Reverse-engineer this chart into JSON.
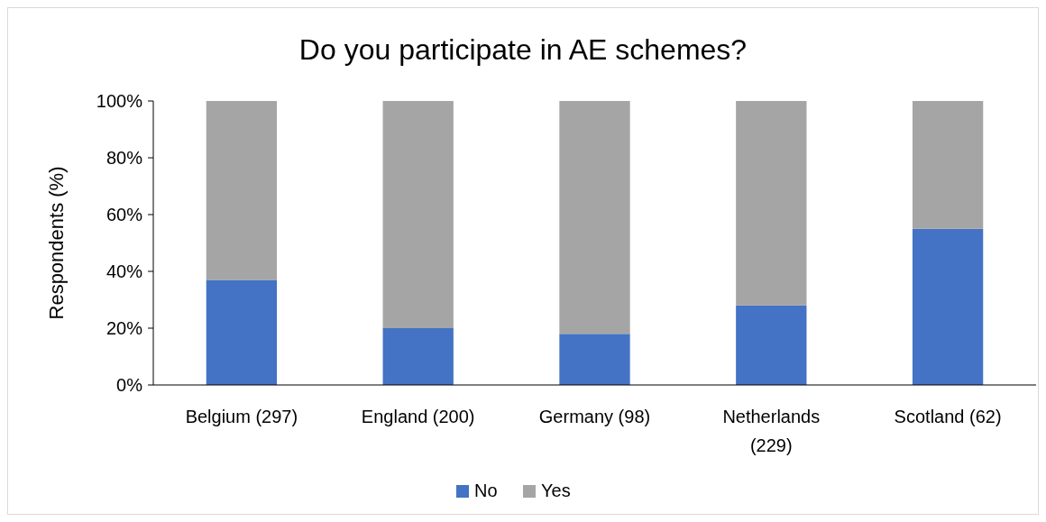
{
  "chart_data": {
    "type": "bar",
    "title": "Do you participate in AE schemes?",
    "ylabel": "Respondents (%)",
    "categories": [
      "Belgium (297)",
      "England (200)",
      "Germany (98)",
      "Netherlands (229)",
      "Scotland (62)"
    ],
    "series": [
      {
        "name": "No",
        "color": "#4472c4",
        "values": [
          37,
          20,
          18,
          28,
          55
        ]
      },
      {
        "name": "Yes",
        "color": "#a5a5a5",
        "values": [
          63,
          80,
          82,
          72,
          45
        ]
      }
    ],
    "stacked": true,
    "ylim": [
      0,
      100
    ],
    "yticks": [
      {
        "value": 0,
        "label": "0%"
      },
      {
        "value": 20,
        "label": "20%"
      },
      {
        "value": 40,
        "label": "40%"
      },
      {
        "value": 60,
        "label": "60%"
      },
      {
        "value": 80,
        "label": "80%"
      },
      {
        "value": 100,
        "label": "100%"
      }
    ],
    "legend": "bottom",
    "grid": false
  }
}
